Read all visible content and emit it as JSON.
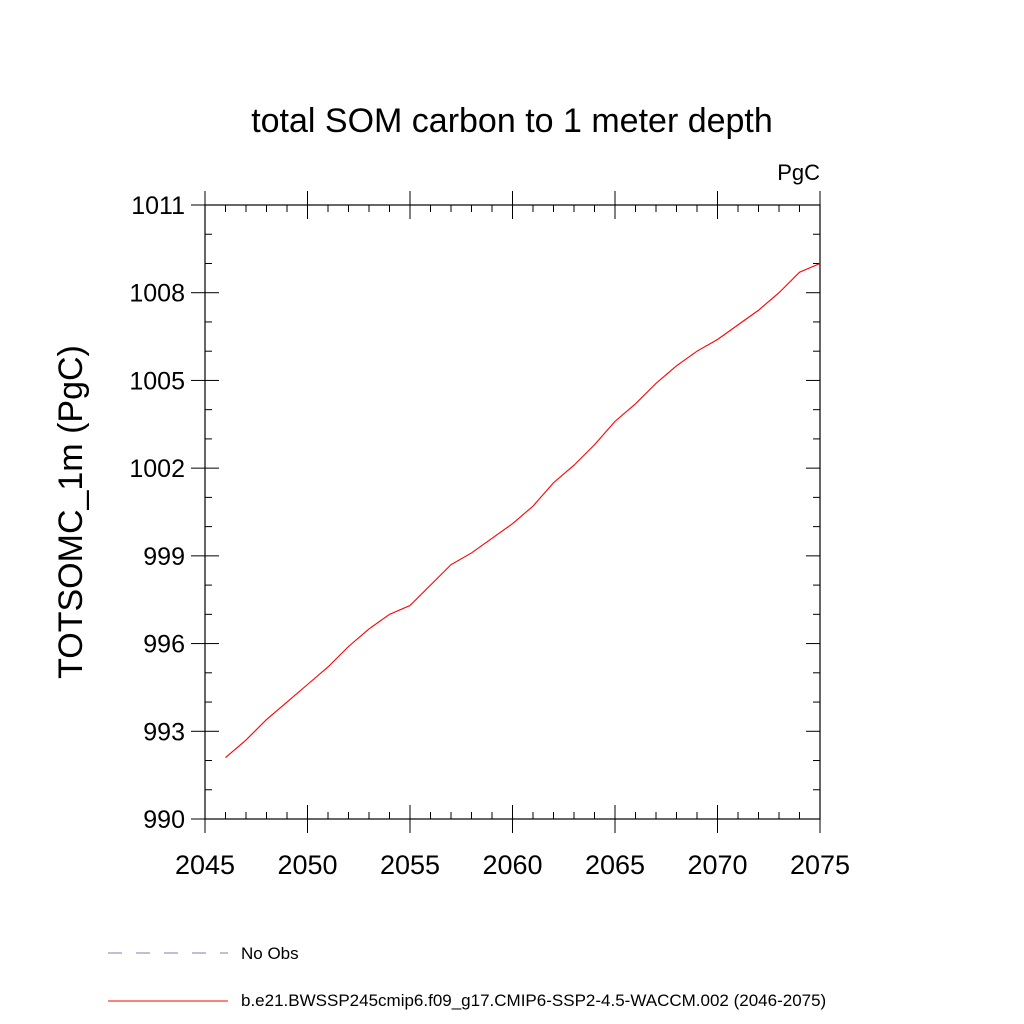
{
  "chart_data": {
    "type": "line",
    "title": "total SOM carbon to 1 meter depth",
    "units": "PgC",
    "xlabel": "",
    "ylabel": "TOTSOMC_1m  (PgC)",
    "xlim": [
      2045,
      2075
    ],
    "ylim": [
      990,
      1011
    ],
    "x_ticks": [
      2045,
      2050,
      2055,
      2060,
      2065,
      2070,
      2075
    ],
    "x_tick_labels": [
      "2045",
      "2050",
      "2055",
      "2060",
      "2065",
      "2070",
      "2075"
    ],
    "y_ticks": [
      990,
      993,
      996,
      999,
      1002,
      1005,
      1008,
      1011
    ],
    "y_tick_labels": [
      "990",
      "993",
      "996",
      "999",
      "1002",
      "1005",
      "1008",
      "1011"
    ],
    "y_minor_step": 1,
    "x_minor_step": 1,
    "grid": false,
    "series": [
      {
        "name": "b.e21.BWSSP245cmip6.f09_g17.CMIP6-SSP2-4.5-WACCM.002 (2046-2075)",
        "color": "#ff0000",
        "style": "solid",
        "x": [
          2046,
          2047,
          2048,
          2049,
          2050,
          2051,
          2052,
          2053,
          2054,
          2055,
          2056,
          2057,
          2058,
          2059,
          2060,
          2061,
          2062,
          2063,
          2064,
          2065,
          2066,
          2067,
          2068,
          2069,
          2070,
          2071,
          2072,
          2073,
          2074,
          2075
        ],
        "values": [
          992.1,
          992.7,
          993.4,
          994.0,
          994.6,
          995.2,
          995.9,
          996.5,
          997.0,
          997.3,
          998.0,
          998.7,
          999.1,
          999.6,
          1000.1,
          1000.7,
          1001.5,
          1002.1,
          1002.8,
          1003.6,
          1004.2,
          1004.9,
          1005.5,
          1006.0,
          1006.4,
          1006.9,
          1007.4,
          1008.0,
          1008.7,
          1009.0
        ]
      }
    ],
    "legend": [
      {
        "label": "No Obs",
        "color": "#7f7faf",
        "style": "dashed"
      },
      {
        "label": "b.e21.BWSSP245cmip6.f09_g17.CMIP6-SSP2-4.5-WACCM.002 (2046-2075)",
        "color": "#ff0000",
        "style": "solid"
      }
    ],
    "legend_position": "bottom-left"
  }
}
